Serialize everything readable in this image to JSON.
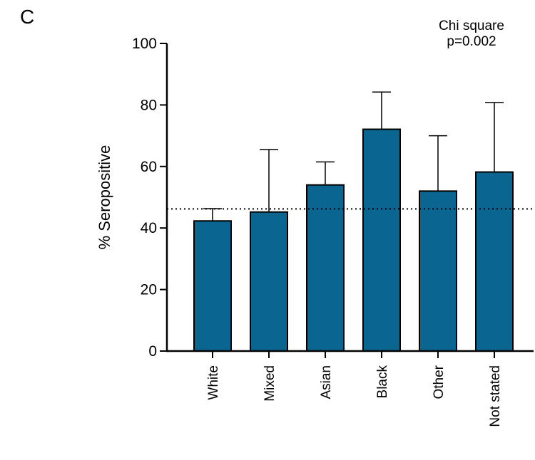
{
  "panel_label": "C",
  "annotation": {
    "line1": "Chi square",
    "line2": "p=0.002"
  },
  "colors": {
    "bar_fill": "#0a6591",
    "bar_stroke": "#000000",
    "axis": "#000000",
    "reference_line": "#000000"
  },
  "chart_data": {
    "type": "bar",
    "title": "",
    "xlabel": "",
    "ylabel": "% Seropositive",
    "ylim": [
      0,
      100
    ],
    "yticks": [
      0,
      20,
      40,
      60,
      80,
      100
    ],
    "categories": [
      "White",
      "Mixed",
      "Asian",
      "Black",
      "Other",
      "Not stated"
    ],
    "values": [
      42.3,
      45.2,
      54.0,
      72.1,
      52.0,
      58.2
    ],
    "error_upper": [
      46.3,
      65.5,
      61.5,
      84.2,
      70.0,
      80.8
    ],
    "reference_line": 46.2,
    "grid": false,
    "legend": "none"
  }
}
